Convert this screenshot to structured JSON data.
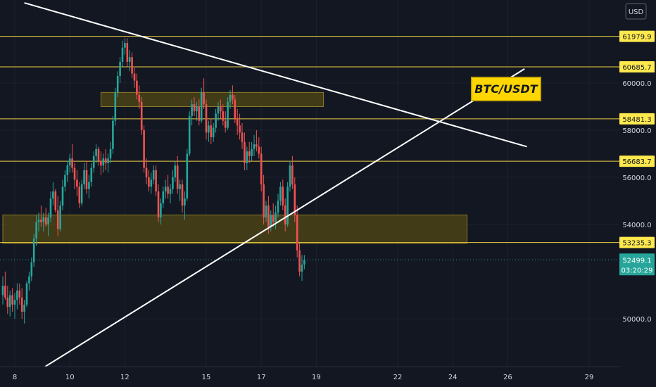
{
  "colors": {
    "background": "#131722",
    "up": "#26a69a",
    "down": "#ef5350",
    "level_line": "#f0d043",
    "level_tag": "#ffe94d",
    "zone_fill": "#4a4215",
    "zone_border": "#8a7a2a",
    "trend_line": "#ffffff",
    "title_fill": "#ffd600",
    "current": "#26a69a"
  },
  "currency_label": "USD",
  "chart_data": {
    "type": "candlestick",
    "title": "BTC/USDT",
    "x_ticks": [
      "8",
      "10",
      "12",
      "15",
      "17",
      "19",
      "22",
      "24",
      "26",
      "29"
    ],
    "y_ticks": [
      60000,
      58000,
      56000,
      54000,
      50000
    ],
    "y_tick_labels": [
      "60000.0",
      "58000.0",
      "56000.0",
      "54000.0",
      "50000.0"
    ],
    "ylim": [
      48000,
      63000
    ],
    "levels": [
      {
        "value": 61979.9,
        "label": "61979.9"
      },
      {
        "value": 60685.7,
        "label": "60685.7"
      },
      {
        "value": 58481.3,
        "label": "58481.3"
      },
      {
        "value": 56683.7,
        "label": "56683.7"
      },
      {
        "value": 53235.3,
        "label": "53235.3"
      }
    ],
    "current_price": {
      "value": 52499.1,
      "label": "52499.1",
      "countdown": "03:20:29"
    },
    "zones": [
      {
        "from_index": 41,
        "to_index": 134,
        "low": 59000,
        "high": 59600
      },
      {
        "from_index": 0,
        "to_index": 194,
        "low": 53200,
        "high": 54400
      }
    ],
    "trendlines": [
      {
        "from": {
          "index": 9,
          "value": 63400
        },
        "to": {
          "index": 219,
          "value": 57300
        }
      },
      {
        "from": {
          "index": 15,
          "value": 47800
        },
        "to": {
          "index": 218,
          "value": 60600
        }
      }
    ],
    "candles": [
      [
        51000,
        51800,
        50600,
        51400
      ],
      [
        51400,
        52000,
        50800,
        50900
      ],
      [
        50900,
        51400,
        50200,
        50500
      ],
      [
        50500,
        51200,
        50100,
        51000
      ],
      [
        51000,
        51300,
        50300,
        50600
      ],
      [
        50600,
        51100,
        50000,
        50800
      ],
      [
        50800,
        51500,
        50400,
        51200
      ],
      [
        51200,
        51500,
        50600,
        50900
      ],
      [
        50900,
        51300,
        50000,
        50300
      ],
      [
        50300,
        50800,
        49800,
        50600
      ],
      [
        50600,
        51600,
        50500,
        51500
      ],
      [
        51500,
        52000,
        51200,
        51800
      ],
      [
        51800,
        52600,
        51600,
        52400
      ],
      [
        52400,
        53600,
        52200,
        53400
      ],
      [
        53400,
        54400,
        53100,
        54100
      ],
      [
        54100,
        54500,
        53700,
        54200
      ],
      [
        54200,
        54800,
        53900,
        54100
      ],
      [
        54100,
        54500,
        53700,
        54300
      ],
      [
        54300,
        54700,
        53900,
        54000
      ],
      [
        54000,
        54500,
        53500,
        54300
      ],
      [
        54300,
        55400,
        54100,
        55100
      ],
      [
        55100,
        55800,
        54800,
        55400
      ],
      [
        55400,
        55500,
        54500,
        54600
      ],
      [
        54600,
        55200,
        53500,
        53800
      ],
      [
        53800,
        55000,
        53700,
        54800
      ],
      [
        54800,
        55900,
        54600,
        55600
      ],
      [
        55600,
        56300,
        55400,
        56100
      ],
      [
        56100,
        56700,
        55800,
        56500
      ],
      [
        56500,
        57000,
        56200,
        56800
      ],
      [
        56800,
        57400,
        56200,
        56400
      ],
      [
        56400,
        56600,
        55500,
        55900
      ],
      [
        55900,
        56300,
        55200,
        55600
      ],
      [
        55600,
        55800,
        54700,
        54900
      ],
      [
        54900,
        55900,
        54800,
        55700
      ],
      [
        55700,
        56600,
        55500,
        56300
      ],
      [
        56300,
        56700,
        55300,
        55500
      ],
      [
        55500,
        56100,
        55100,
        55800
      ],
      [
        55800,
        56600,
        55600,
        56400
      ],
      [
        56400,
        57100,
        56200,
        56900
      ],
      [
        56900,
        57400,
        56600,
        57200
      ],
      [
        57200,
        57300,
        56500,
        56700
      ],
      [
        56700,
        57100,
        56100,
        56500
      ],
      [
        56500,
        57000,
        56200,
        56800
      ],
      [
        56800,
        57200,
        56300,
        56600
      ],
      [
        56600,
        57000,
        56200,
        56800
      ],
      [
        56800,
        57500,
        56600,
        57200
      ],
      [
        57200,
        58600,
        57000,
        58400
      ],
      [
        58400,
        59800,
        58200,
        59600
      ],
      [
        59600,
        60500,
        59400,
        60300
      ],
      [
        60300,
        61100,
        60000,
        60900
      ],
      [
        60900,
        61800,
        60700,
        61500
      ],
      [
        61500,
        61900,
        61200,
        61700
      ],
      [
        61700,
        61900,
        60700,
        60900
      ],
      [
        60900,
        61400,
        60500,
        61100
      ],
      [
        61100,
        61300,
        60200,
        60400
      ],
      [
        60400,
        60700,
        59800,
        60100
      ],
      [
        60100,
        60400,
        59300,
        59500
      ],
      [
        59500,
        59900,
        58900,
        59200
      ],
      [
        59200,
        59400,
        57800,
        58000
      ],
      [
        58000,
        58200,
        56200,
        56400
      ],
      [
        56400,
        56800,
        55700,
        56000
      ],
      [
        56000,
        56300,
        55400,
        55600
      ],
      [
        55600,
        56200,
        55300,
        55900
      ],
      [
        55900,
        56500,
        55700,
        56300
      ],
      [
        56300,
        56500,
        55200,
        55400
      ],
      [
        55400,
        55700,
        54100,
        54300
      ],
      [
        54300,
        55100,
        54000,
        54900
      ],
      [
        54900,
        55600,
        54700,
        55400
      ],
      [
        55400,
        55900,
        55100,
        55600
      ],
      [
        55600,
        56100,
        55100,
        55300
      ],
      [
        55300,
        55700,
        54900,
        55500
      ],
      [
        55500,
        56300,
        55300,
        56000
      ],
      [
        56000,
        56700,
        55800,
        56500
      ],
      [
        56500,
        56900,
        55300,
        55500
      ],
      [
        55500,
        55900,
        55000,
        55700
      ],
      [
        55700,
        55900,
        54500,
        54800
      ],
      [
        54800,
        55400,
        54200,
        55100
      ],
      [
        55100,
        57200,
        55000,
        57000
      ],
      [
        57000,
        58800,
        56900,
        58600
      ],
      [
        58600,
        59300,
        58200,
        59100
      ],
      [
        59100,
        59400,
        58600,
        58800
      ],
      [
        58800,
        59200,
        58400,
        59000
      ],
      [
        59000,
        59300,
        58200,
        58400
      ],
      [
        58400,
        59800,
        58300,
        59600
      ],
      [
        59600,
        60200,
        58900,
        59100
      ],
      [
        59100,
        59300,
        57600,
        57900
      ],
      [
        57900,
        58400,
        57500,
        58200
      ],
      [
        58200,
        58500,
        57400,
        57700
      ],
      [
        57700,
        58300,
        57500,
        58100
      ],
      [
        58100,
        58900,
        57900,
        58700
      ],
      [
        58700,
        59200,
        58400,
        59000
      ],
      [
        59000,
        59300,
        58500,
        58800
      ],
      [
        58800,
        59100,
        58200,
        58400
      ],
      [
        58400,
        58800,
        57900,
        58100
      ],
      [
        58100,
        59400,
        58000,
        59200
      ],
      [
        59200,
        59700,
        58900,
        59500
      ],
      [
        59500,
        59900,
        59100,
        59300
      ],
      [
        59300,
        59500,
        58300,
        58500
      ],
      [
        58500,
        58900,
        57800,
        58200
      ],
      [
        58200,
        58700,
        57600,
        57900
      ],
      [
        57900,
        58300,
        57200,
        57500
      ],
      [
        57500,
        57900,
        56300,
        56600
      ],
      [
        56600,
        57300,
        56300,
        57100
      ],
      [
        57100,
        57500,
        56600,
        56900
      ],
      [
        56900,
        57500,
        56700,
        57200
      ],
      [
        57200,
        57800,
        56900,
        57400
      ],
      [
        57400,
        58000,
        57100,
        57300
      ],
      [
        57300,
        57700,
        56800,
        57000
      ],
      [
        57000,
        57300,
        55400,
        55700
      ],
      [
        55700,
        56100,
        54000,
        54300
      ],
      [
        54300,
        55000,
        54100,
        54800
      ],
      [
        54800,
        55200,
        53600,
        53900
      ],
      [
        53900,
        54600,
        53700,
        54400
      ],
      [
        54400,
        54900,
        53900,
        54100
      ],
      [
        54100,
        54800,
        53800,
        54500
      ],
      [
        54500,
        55300,
        54300,
        55000
      ],
      [
        55000,
        55800,
        54800,
        55600
      ],
      [
        55600,
        55900,
        54600,
        54800
      ],
      [
        54800,
        55100,
        53700,
        54000
      ],
      [
        54000,
        55800,
        53900,
        55600
      ],
      [
        55600,
        56700,
        55400,
        56500
      ],
      [
        56500,
        56900,
        55500,
        55700
      ],
      [
        55700,
        56000,
        54100,
        54400
      ],
      [
        54400,
        54800,
        52600,
        52900
      ],
      [
        52900,
        53200,
        51800,
        52000
      ],
      [
        52000,
        52700,
        51600,
        52300
      ],
      [
        52300,
        52700,
        52100,
        52500
      ]
    ]
  }
}
